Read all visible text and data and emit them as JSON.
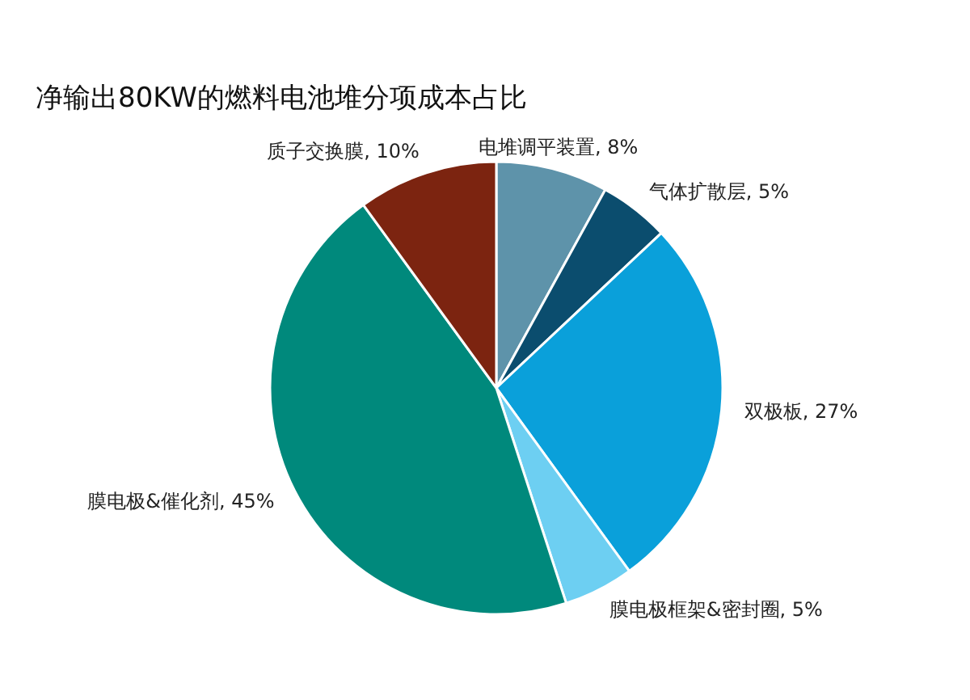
{
  "chart_data": {
    "type": "pie",
    "title": "净输出80KW的燃料电池堆分项成本占比",
    "categories": [
      "电堆调平装置",
      "气体扩散层",
      "双极板",
      "膜电极框架&密封圈",
      "膜电极&催化剂",
      "质子交换膜"
    ],
    "values": [
      8,
      5,
      27,
      5,
      45,
      10
    ],
    "value_labels": [
      "8%",
      "5%",
      "27%",
      "5%",
      "45%",
      "10%"
    ],
    "colors": [
      "#5e93aa",
      "#0b4d6e",
      "#0aa0da",
      "#6dcff2",
      "#00897c",
      "#7c2410"
    ],
    "legend": false
  }
}
